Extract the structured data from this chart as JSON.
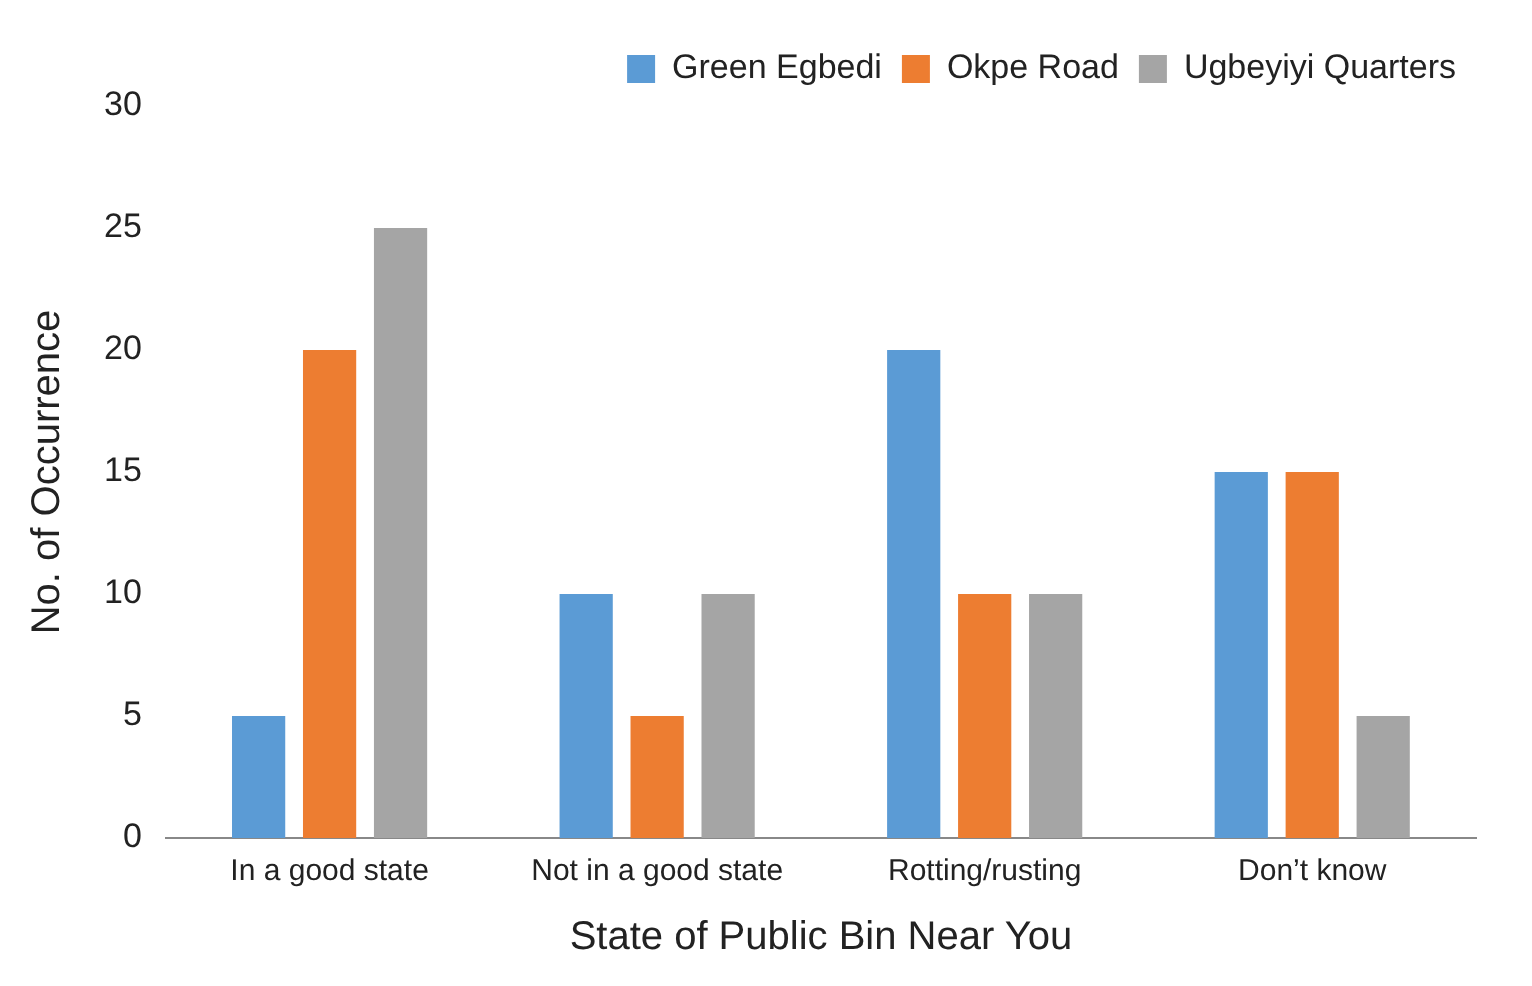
{
  "chart_data": {
    "type": "bar",
    "xlabel": "State of Public Bin Near You",
    "ylabel": "No. of Occurrence",
    "categories": [
      "In a good state",
      "Not in a good state",
      "Rotting/rusting",
      "Don’t know"
    ],
    "series": [
      {
        "name": "Green Egbedi",
        "color": "#5b9bd5",
        "values": [
          5,
          10,
          20,
          15
        ]
      },
      {
        "name": "Okpe Road",
        "color": "#ed7d31",
        "values": [
          20,
          5,
          10,
          15
        ]
      },
      {
        "name": "Ugbeyiyi Quarters",
        "color": "#a5a5a5",
        "values": [
          25,
          10,
          10,
          5
        ]
      }
    ],
    "ylim": [
      0,
      30
    ],
    "yticks": [
      0,
      5,
      10,
      15,
      20,
      25,
      30
    ],
    "grid": false,
    "legend": "top"
  }
}
